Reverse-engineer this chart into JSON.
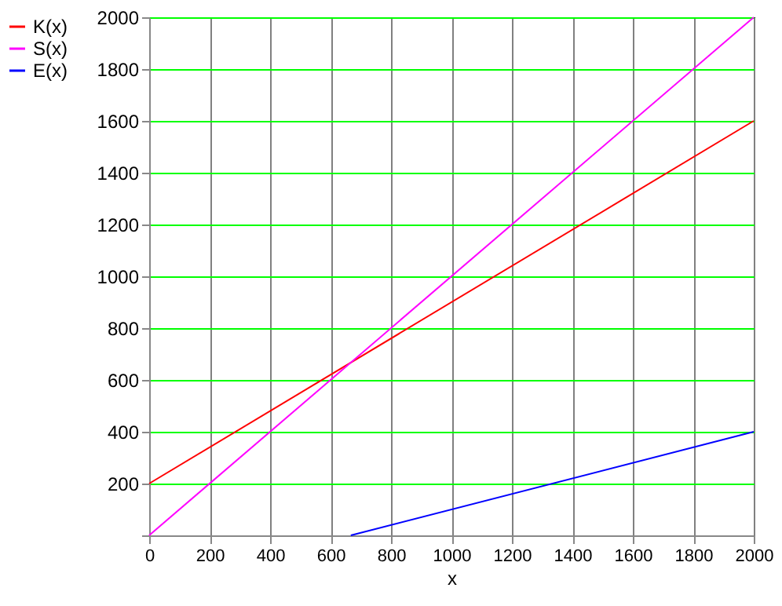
{
  "chart_data": {
    "type": "line",
    "xlabel": "x",
    "xlim": [
      0,
      2000
    ],
    "xticks": [
      0,
      200,
      400,
      600,
      800,
      1000,
      1200,
      1400,
      1600,
      1800,
      2000
    ],
    "ylim": [
      0,
      2000
    ],
    "yticks": [
      {
        "value": 0,
        "label": null
      },
      200,
      400,
      600,
      800,
      1000,
      1200,
      1400,
      1600,
      1800,
      2000
    ],
    "series": [
      {
        "name": "K(x)",
        "color": "#ff0000",
        "x": [
          0,
          2000
        ],
        "values": [
          200,
          1600
        ]
      },
      {
        "name": "S(x)",
        "color": "#ff00ff",
        "x": [
          0,
          2000
        ],
        "values": [
          0,
          2000
        ]
      },
      {
        "name": "E(x)",
        "color": "#0000ff",
        "x": [
          667,
          2000
        ],
        "values": [
          0,
          400
        ]
      }
    ],
    "grid": true,
    "legend": "left",
    "marker": "none",
    "line_style": "solid"
  }
}
